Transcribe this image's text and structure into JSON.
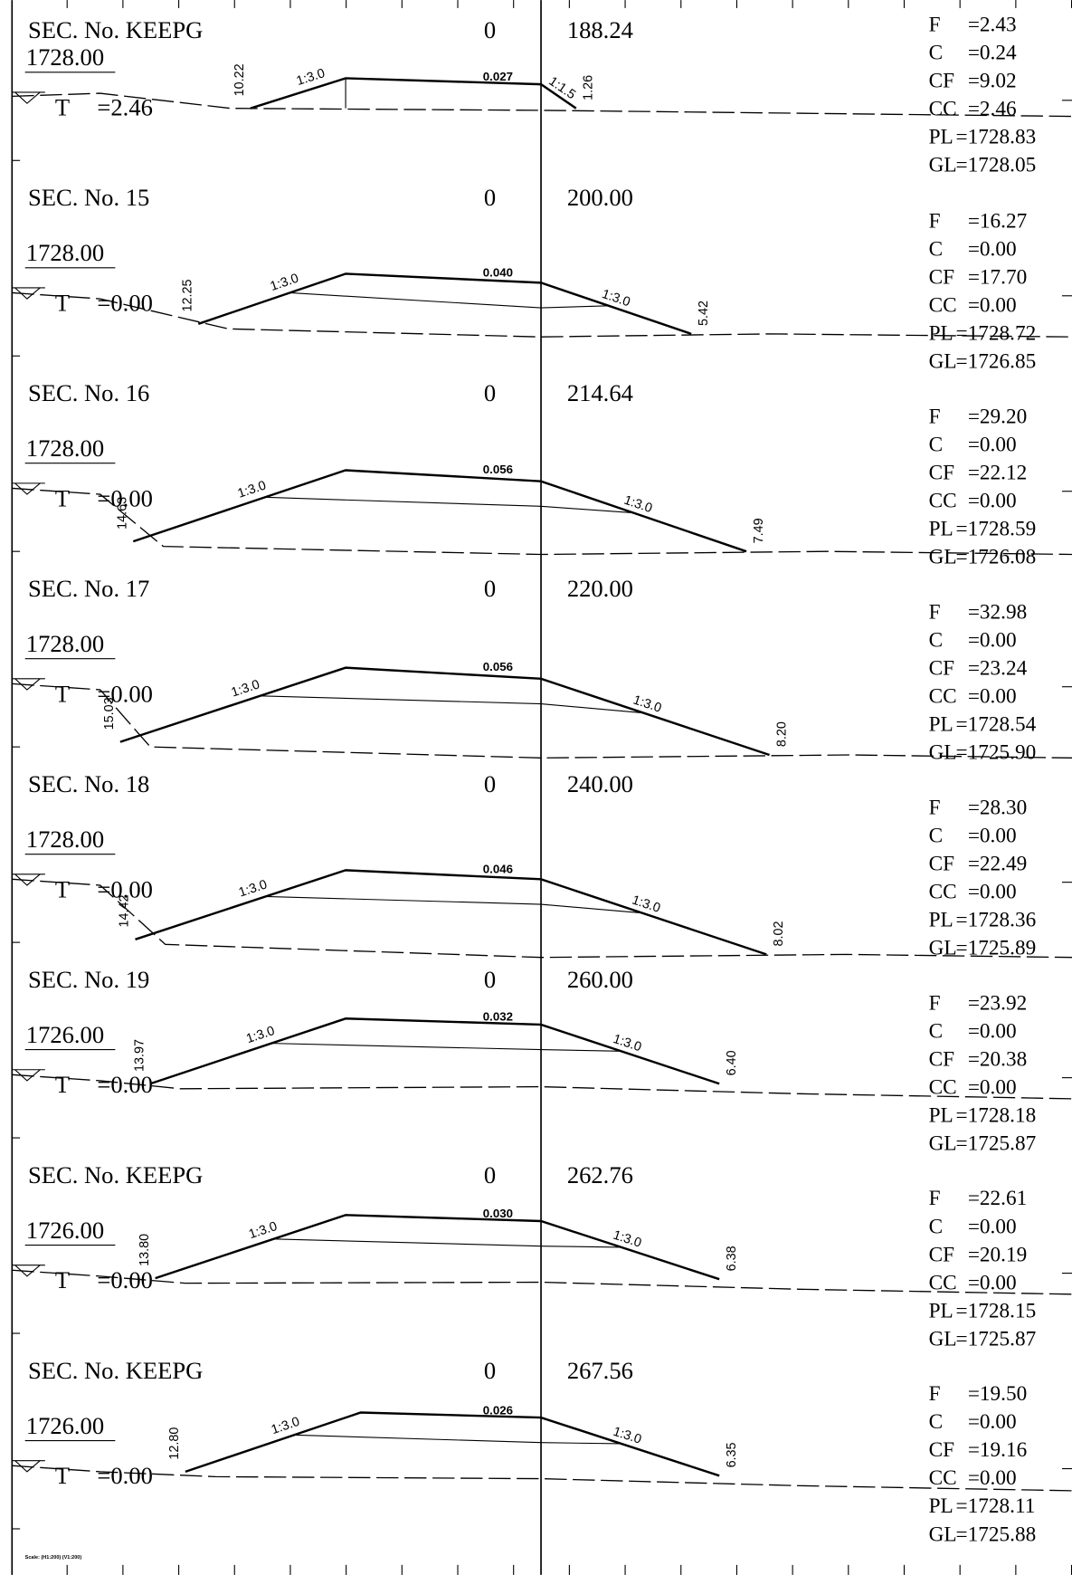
{
  "scale_note": "Scale: (H1:200) (V1:200)",
  "sections": [
    {
      "title": "SEC. No. KEEPG",
      "zero": "0",
      "chainage": "188.24",
      "level": "1728.00",
      "t_label": "T",
      "t_value": "=2.46",
      "left_height": "10.22",
      "left_slope": "1:3.0",
      "gradient": "0.027",
      "right_slope": "1:1.5",
      "right_height": "1.26",
      "props": [
        {
          "label": "F",
          "value": "=2.43"
        },
        {
          "label": "C",
          "value": "=0.24"
        },
        {
          "label": "CF",
          "value": "=9.02"
        },
        {
          "label": "CC",
          "value": "=2.46"
        },
        {
          "label": "PL",
          "value": "=1728.83"
        },
        {
          "label": "GL",
          "value": "=1728.05"
        }
      ]
    },
    {
      "title": "SEC. No. 15",
      "zero": "0",
      "chainage": "200.00",
      "level": "1728.00",
      "t_label": "T",
      "t_value": "=0.00",
      "left_height": "12.25",
      "left_slope": "1:3.0",
      "gradient": "0.040",
      "right_slope": "1:3.0",
      "right_height": "5.42",
      "props": [
        {
          "label": "F",
          "value": "=16.27"
        },
        {
          "label": "C",
          "value": "=0.00"
        },
        {
          "label": "CF",
          "value": "=17.70"
        },
        {
          "label": "CC",
          "value": "=0.00"
        },
        {
          "label": "PL",
          "value": "=1728.72"
        },
        {
          "label": "GL",
          "value": "=1726.85"
        }
      ]
    },
    {
      "title": "SEC. No. 16",
      "zero": "0",
      "chainage": "214.64",
      "level": "1728.00",
      "t_label": "T",
      "t_value": "=0.00",
      "left_height": "14.63",
      "left_slope": "1:3.0",
      "gradient": "0.056",
      "right_slope": "1:3.0",
      "right_height": "7.49",
      "props": [
        {
          "label": "F",
          "value": "=29.20"
        },
        {
          "label": "C",
          "value": "=0.00"
        },
        {
          "label": "CF",
          "value": "=22.12"
        },
        {
          "label": "CC",
          "value": "=0.00"
        },
        {
          "label": "PL",
          "value": "=1728.59"
        },
        {
          "label": "GL",
          "value": "=1726.08"
        }
      ]
    },
    {
      "title": "SEC. No. 17",
      "zero": "0",
      "chainage": "220.00",
      "level": "1728.00",
      "t_label": "T",
      "t_value": "=0.00",
      "left_height": "15.03",
      "left_slope": "1:3.0",
      "gradient": "0.056",
      "right_slope": "1:3.0",
      "right_height": "8.20",
      "props": [
        {
          "label": "F",
          "value": "=32.98"
        },
        {
          "label": "C",
          "value": "=0.00"
        },
        {
          "label": "CF",
          "value": "=23.24"
        },
        {
          "label": "CC",
          "value": "=0.00"
        },
        {
          "label": "PL",
          "value": "=1728.54"
        },
        {
          "label": "GL",
          "value": "=1725.90"
        }
      ]
    },
    {
      "title": "SEC. No. 18",
      "zero": "0",
      "chainage": "240.00",
      "level": "1728.00",
      "t_label": "T",
      "t_value": "=0.00",
      "left_height": "14.42",
      "left_slope": "1:3.0",
      "gradient": "0.046",
      "right_slope": "1:3.0",
      "right_height": "8.02",
      "props": [
        {
          "label": "F",
          "value": "=28.30"
        },
        {
          "label": "C",
          "value": "=0.00"
        },
        {
          "label": "CF",
          "value": "=22.49"
        },
        {
          "label": "CC",
          "value": "=0.00"
        },
        {
          "label": "PL",
          "value": "=1728.36"
        },
        {
          "label": "GL",
          "value": "=1725.89"
        }
      ]
    },
    {
      "title": "SEC. No. 19",
      "zero": "0",
      "chainage": "260.00",
      "level": "1726.00",
      "t_label": "T",
      "t_value": "=0.00",
      "left_height": "13.97",
      "left_slope": "1:3.0",
      "gradient": "0.032",
      "right_slope": "1:3.0",
      "right_height": "6.40",
      "props": [
        {
          "label": "F",
          "value": "=23.92"
        },
        {
          "label": "C",
          "value": "=0.00"
        },
        {
          "label": "CF",
          "value": "=20.38"
        },
        {
          "label": "CC",
          "value": "=0.00"
        },
        {
          "label": "PL",
          "value": "=1728.18"
        },
        {
          "label": "GL",
          "value": "=1725.87"
        }
      ]
    },
    {
      "title": "SEC. No. KEEPG",
      "zero": "0",
      "chainage": "262.76",
      "level": "1726.00",
      "t_label": "T",
      "t_value": "=0.00",
      "left_height": "13.80",
      "left_slope": "1:3.0",
      "gradient": "0.030",
      "right_slope": "1:3.0",
      "right_height": "6.38",
      "props": [
        {
          "label": "F",
          "value": "=22.61"
        },
        {
          "label": "C",
          "value": "=0.00"
        },
        {
          "label": "CF",
          "value": "=20.19"
        },
        {
          "label": "CC",
          "value": "=0.00"
        },
        {
          "label": "PL",
          "value": "=1728.15"
        },
        {
          "label": "GL",
          "value": "=1725.87"
        }
      ]
    },
    {
      "title": "SEC. No. KEEPG",
      "zero": "0",
      "chainage": "267.56",
      "level": "1726.00",
      "t_label": "T",
      "t_value": "=0.00",
      "left_height": "12.80",
      "left_slope": "1:3.0",
      "gradient": "0.026",
      "right_slope": "1:3.0",
      "right_height": "6.35",
      "props": [
        {
          "label": "F",
          "value": "=19.50"
        },
        {
          "label": "C",
          "value": "=0.00"
        },
        {
          "label": "CF",
          "value": "=19.16"
        },
        {
          "label": "CC",
          "value": "=0.00"
        },
        {
          "label": "PL",
          "value": "=1728.11"
        },
        {
          "label": "GL",
          "value": "=1725.88"
        }
      ]
    }
  ]
}
